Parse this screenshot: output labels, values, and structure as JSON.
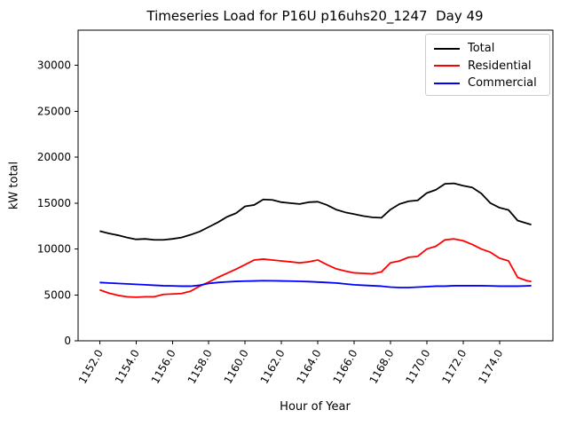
{
  "chart_data": {
    "type": "line",
    "title": "Timeseries Load for P16U p16uhs20_1247  Day 49",
    "xlabel": "Hour of Year",
    "ylabel": "kW total",
    "grid": false,
    "legend_position": "upper right",
    "background_color": "#ffffff",
    "axis_color": "#000000",
    "legend_border_color": "#cccccc",
    "xlim": [
      1150.81,
      1176.94
    ],
    "ylim": [
      0,
      33840
    ],
    "xticks": [
      1152,
      1154,
      1156,
      1158,
      1160,
      1162,
      1164,
      1166,
      1168,
      1170,
      1172,
      1174
    ],
    "xtick_labels": [
      "1152.0",
      "1154.0",
      "1156.0",
      "1158.0",
      "1160.0",
      "1162.0",
      "1164.0",
      "1166.0",
      "1168.0",
      "1170.0",
      "1172.0",
      "1174.0"
    ],
    "xtick_rotation_deg": 60,
    "yticks": [
      0,
      5000,
      10000,
      15000,
      20000,
      25000,
      30000
    ],
    "ytick_labels": [
      "0",
      "5000",
      "10000",
      "15000",
      "20000",
      "25000",
      "30000"
    ],
    "x": [
      1152.0,
      1152.5,
      1153.0,
      1153.5,
      1154.0,
      1154.5,
      1155.0,
      1155.5,
      1156.0,
      1156.5,
      1157.0,
      1157.5,
      1158.0,
      1158.5,
      1159.0,
      1159.5,
      1160.0,
      1160.5,
      1161.0,
      1161.5,
      1162.0,
      1162.5,
      1163.0,
      1163.5,
      1164.0,
      1164.5,
      1165.0,
      1165.5,
      1166.0,
      1166.5,
      1167.0,
      1167.5,
      1168.0,
      1168.5,
      1169.0,
      1169.5,
      1170.0,
      1170.5,
      1171.0,
      1171.5,
      1172.0,
      1172.5,
      1173.0,
      1173.5,
      1174.0,
      1174.5,
      1175.0,
      1175.5,
      1175.75
    ],
    "series": [
      {
        "name": "Total",
        "color": "#000000",
        "values": [
          11950,
          11700,
          11500,
          11250,
          11050,
          11100,
          11000,
          11000,
          11100,
          11250,
          11550,
          11900,
          12400,
          12900,
          13500,
          13900,
          14650,
          14800,
          15400,
          15350,
          15100,
          15000,
          14900,
          15100,
          15150,
          14800,
          14300,
          14000,
          13800,
          13600,
          13450,
          13400,
          14300,
          14900,
          15200,
          15300,
          16100,
          16450,
          17100,
          17150,
          16900,
          16700,
          16050,
          15000,
          14500,
          14250,
          13100,
          12800,
          12650
        ]
      },
      {
        "name": "Residential",
        "color": "#ff0000",
        "values": [
          5550,
          5200,
          4950,
          4800,
          4750,
          4800,
          4800,
          5050,
          5100,
          5150,
          5400,
          5950,
          6400,
          6900,
          7350,
          7800,
          8300,
          8800,
          8900,
          8800,
          8700,
          8600,
          8500,
          8600,
          8800,
          8300,
          7850,
          7600,
          7400,
          7350,
          7300,
          7500,
          8500,
          8700,
          9100,
          9200,
          10000,
          10300,
          11000,
          11100,
          10900,
          10500,
          10000,
          9650,
          9000,
          8700,
          6900,
          6550,
          6450
        ]
      },
      {
        "name": "Commercial",
        "color": "#0000ff",
        "values": [
          6350,
          6300,
          6250,
          6200,
          6150,
          6100,
          6050,
          6000,
          5980,
          5950,
          5950,
          6050,
          6250,
          6350,
          6420,
          6470,
          6500,
          6520,
          6550,
          6540,
          6520,
          6500,
          6480,
          6450,
          6400,
          6350,
          6300,
          6200,
          6100,
          6050,
          6000,
          5950,
          5850,
          5800,
          5800,
          5850,
          5900,
          5950,
          5950,
          6000,
          6000,
          6000,
          6000,
          5980,
          5950,
          5950,
          5950,
          5980,
          6000
        ]
      }
    ]
  }
}
